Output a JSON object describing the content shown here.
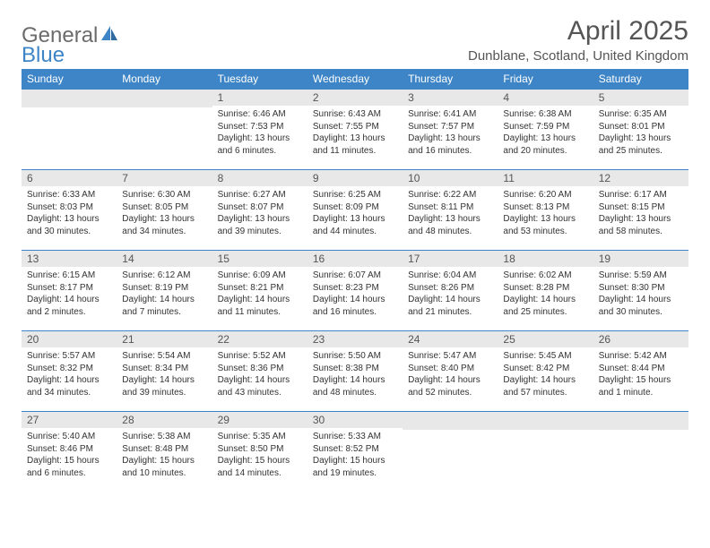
{
  "brand": {
    "word1": "General",
    "word2": "Blue",
    "color_gray": "#6b6b6b",
    "color_blue": "#3d85c6"
  },
  "header": {
    "title": "April 2025",
    "subtitle": "Dunblane, Scotland, United Kingdom"
  },
  "styling": {
    "header_bg": "#3d85c6",
    "header_text": "#ffffff",
    "daynum_bg": "#e8e8e8",
    "daynum_border": "#3d85c6",
    "page_bg": "#ffffff",
    "body_text": "#333333",
    "title_fontsize": 30,
    "subtitle_fontsize": 15,
    "weekday_fontsize": 12,
    "cell_fontsize": 10
  },
  "weekdays": [
    "Sunday",
    "Monday",
    "Tuesday",
    "Wednesday",
    "Thursday",
    "Friday",
    "Saturday"
  ],
  "weeks": [
    [
      null,
      null,
      {
        "n": "1",
        "sunrise": "Sunrise: 6:46 AM",
        "sunset": "Sunset: 7:53 PM",
        "daylight": "Daylight: 13 hours and 6 minutes."
      },
      {
        "n": "2",
        "sunrise": "Sunrise: 6:43 AM",
        "sunset": "Sunset: 7:55 PM",
        "daylight": "Daylight: 13 hours and 11 minutes."
      },
      {
        "n": "3",
        "sunrise": "Sunrise: 6:41 AM",
        "sunset": "Sunset: 7:57 PM",
        "daylight": "Daylight: 13 hours and 16 minutes."
      },
      {
        "n": "4",
        "sunrise": "Sunrise: 6:38 AM",
        "sunset": "Sunset: 7:59 PM",
        "daylight": "Daylight: 13 hours and 20 minutes."
      },
      {
        "n": "5",
        "sunrise": "Sunrise: 6:35 AM",
        "sunset": "Sunset: 8:01 PM",
        "daylight": "Daylight: 13 hours and 25 minutes."
      }
    ],
    [
      {
        "n": "6",
        "sunrise": "Sunrise: 6:33 AM",
        "sunset": "Sunset: 8:03 PM",
        "daylight": "Daylight: 13 hours and 30 minutes."
      },
      {
        "n": "7",
        "sunrise": "Sunrise: 6:30 AM",
        "sunset": "Sunset: 8:05 PM",
        "daylight": "Daylight: 13 hours and 34 minutes."
      },
      {
        "n": "8",
        "sunrise": "Sunrise: 6:27 AM",
        "sunset": "Sunset: 8:07 PM",
        "daylight": "Daylight: 13 hours and 39 minutes."
      },
      {
        "n": "9",
        "sunrise": "Sunrise: 6:25 AM",
        "sunset": "Sunset: 8:09 PM",
        "daylight": "Daylight: 13 hours and 44 minutes."
      },
      {
        "n": "10",
        "sunrise": "Sunrise: 6:22 AM",
        "sunset": "Sunset: 8:11 PM",
        "daylight": "Daylight: 13 hours and 48 minutes."
      },
      {
        "n": "11",
        "sunrise": "Sunrise: 6:20 AM",
        "sunset": "Sunset: 8:13 PM",
        "daylight": "Daylight: 13 hours and 53 minutes."
      },
      {
        "n": "12",
        "sunrise": "Sunrise: 6:17 AM",
        "sunset": "Sunset: 8:15 PM",
        "daylight": "Daylight: 13 hours and 58 minutes."
      }
    ],
    [
      {
        "n": "13",
        "sunrise": "Sunrise: 6:15 AM",
        "sunset": "Sunset: 8:17 PM",
        "daylight": "Daylight: 14 hours and 2 minutes."
      },
      {
        "n": "14",
        "sunrise": "Sunrise: 6:12 AM",
        "sunset": "Sunset: 8:19 PM",
        "daylight": "Daylight: 14 hours and 7 minutes."
      },
      {
        "n": "15",
        "sunrise": "Sunrise: 6:09 AM",
        "sunset": "Sunset: 8:21 PM",
        "daylight": "Daylight: 14 hours and 11 minutes."
      },
      {
        "n": "16",
        "sunrise": "Sunrise: 6:07 AM",
        "sunset": "Sunset: 8:23 PM",
        "daylight": "Daylight: 14 hours and 16 minutes."
      },
      {
        "n": "17",
        "sunrise": "Sunrise: 6:04 AM",
        "sunset": "Sunset: 8:26 PM",
        "daylight": "Daylight: 14 hours and 21 minutes."
      },
      {
        "n": "18",
        "sunrise": "Sunrise: 6:02 AM",
        "sunset": "Sunset: 8:28 PM",
        "daylight": "Daylight: 14 hours and 25 minutes."
      },
      {
        "n": "19",
        "sunrise": "Sunrise: 5:59 AM",
        "sunset": "Sunset: 8:30 PM",
        "daylight": "Daylight: 14 hours and 30 minutes."
      }
    ],
    [
      {
        "n": "20",
        "sunrise": "Sunrise: 5:57 AM",
        "sunset": "Sunset: 8:32 PM",
        "daylight": "Daylight: 14 hours and 34 minutes."
      },
      {
        "n": "21",
        "sunrise": "Sunrise: 5:54 AM",
        "sunset": "Sunset: 8:34 PM",
        "daylight": "Daylight: 14 hours and 39 minutes."
      },
      {
        "n": "22",
        "sunrise": "Sunrise: 5:52 AM",
        "sunset": "Sunset: 8:36 PM",
        "daylight": "Daylight: 14 hours and 43 minutes."
      },
      {
        "n": "23",
        "sunrise": "Sunrise: 5:50 AM",
        "sunset": "Sunset: 8:38 PM",
        "daylight": "Daylight: 14 hours and 48 minutes."
      },
      {
        "n": "24",
        "sunrise": "Sunrise: 5:47 AM",
        "sunset": "Sunset: 8:40 PM",
        "daylight": "Daylight: 14 hours and 52 minutes."
      },
      {
        "n": "25",
        "sunrise": "Sunrise: 5:45 AM",
        "sunset": "Sunset: 8:42 PM",
        "daylight": "Daylight: 14 hours and 57 minutes."
      },
      {
        "n": "26",
        "sunrise": "Sunrise: 5:42 AM",
        "sunset": "Sunset: 8:44 PM",
        "daylight": "Daylight: 15 hours and 1 minute."
      }
    ],
    [
      {
        "n": "27",
        "sunrise": "Sunrise: 5:40 AM",
        "sunset": "Sunset: 8:46 PM",
        "daylight": "Daylight: 15 hours and 6 minutes."
      },
      {
        "n": "28",
        "sunrise": "Sunrise: 5:38 AM",
        "sunset": "Sunset: 8:48 PM",
        "daylight": "Daylight: 15 hours and 10 minutes."
      },
      {
        "n": "29",
        "sunrise": "Sunrise: 5:35 AM",
        "sunset": "Sunset: 8:50 PM",
        "daylight": "Daylight: 15 hours and 14 minutes."
      },
      {
        "n": "30",
        "sunrise": "Sunrise: 5:33 AM",
        "sunset": "Sunset: 8:52 PM",
        "daylight": "Daylight: 15 hours and 19 minutes."
      },
      null,
      null,
      null
    ]
  ]
}
